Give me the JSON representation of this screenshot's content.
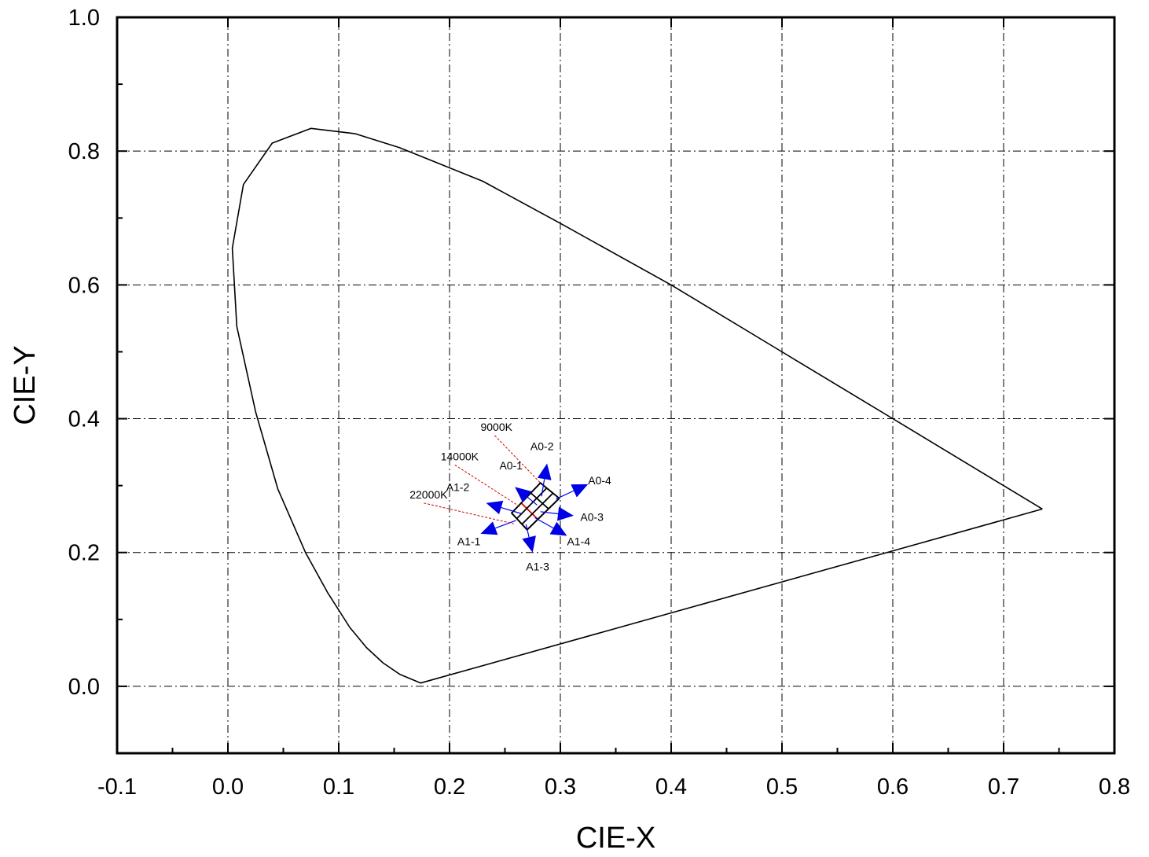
{
  "chart_data": {
    "type": "scatter",
    "title": "",
    "xlabel": "CIE-X",
    "ylabel": "CIE-Y",
    "xlim": [
      -0.1,
      0.8
    ],
    "ylim": [
      -0.1,
      1.0
    ],
    "x_ticks": [
      -0.1,
      0.0,
      0.1,
      0.2,
      0.3,
      0.4,
      0.5,
      0.6,
      0.7,
      0.8
    ],
    "x_tick_labels": [
      "-0.1",
      "0.0",
      "0.1",
      "0.2",
      "0.3",
      "0.4",
      "0.5",
      "0.6",
      "0.7",
      "0.8"
    ],
    "y_ticks": [
      0.0,
      0.2,
      0.4,
      0.6,
      0.8,
      1.0
    ],
    "y_tick_labels": [
      "0.0",
      "0.2",
      "0.4",
      "0.6",
      "0.8",
      "1.0"
    ],
    "grid": true,
    "grid_style": "dash-dot",
    "series": [
      {
        "kind": "line",
        "color": "#000000",
        "points": [
          [
            0.735,
            0.265
          ],
          [
            0.6,
            0.4
          ],
          [
            0.5,
            0.5
          ],
          [
            0.4,
            0.6
          ],
          [
            0.3,
            0.692
          ],
          [
            0.23,
            0.755
          ],
          [
            0.155,
            0.805
          ],
          [
            0.115,
            0.826
          ],
          [
            0.075,
            0.834
          ],
          [
            0.04,
            0.812
          ],
          [
            0.014,
            0.75
          ],
          [
            0.004,
            0.655
          ],
          [
            0.008,
            0.538
          ],
          [
            0.025,
            0.41
          ],
          [
            0.045,
            0.295
          ],
          [
            0.07,
            0.2
          ],
          [
            0.09,
            0.14
          ],
          [
            0.11,
            0.088
          ],
          [
            0.125,
            0.058
          ],
          [
            0.14,
            0.035
          ],
          [
            0.155,
            0.018
          ],
          [
            0.174,
            0.005
          ],
          [
            0.735,
            0.265
          ]
        ]
      }
    ],
    "grid_region": {
      "corners": {
        "top_left": [
          0.256,
          0.259
        ],
        "top_right": [
          0.282,
          0.304
        ],
        "bottom_right": [
          0.299,
          0.281
        ],
        "bottom_left": [
          0.27,
          0.234
        ]
      },
      "divisions": 3,
      "edge_color": "#000000",
      "red_line_color": "#d40000"
    },
    "cct_labels": [
      {
        "text": "9000K",
        "pos": [
          0.228,
          0.382
        ],
        "target": [
          0.282,
          0.304
        ]
      },
      {
        "text": "14000K",
        "pos": [
          0.192,
          0.338
        ],
        "target": [
          0.264,
          0.268
        ]
      },
      {
        "text": "22000K",
        "pos": [
          0.164,
          0.281
        ],
        "target": [
          0.258,
          0.243
        ]
      }
    ],
    "arrows": [
      {
        "label": "A0-1",
        "from": [
          0.279,
          0.271
        ],
        "to": [
          0.259,
          0.298
        ],
        "label_pos": [
          0.245,
          0.324
        ]
      },
      {
        "label": "A0-2",
        "from": [
          0.283,
          0.284
        ],
        "to": [
          0.288,
          0.333
        ],
        "label_pos": [
          0.273,
          0.353
        ]
      },
      {
        "label": "A0-4",
        "from": [
          0.296,
          0.28
        ],
        "to": [
          0.325,
          0.302
        ],
        "label_pos": [
          0.325,
          0.302
        ]
      },
      {
        "label": "A0-3",
        "from": [
          0.282,
          0.261
        ],
        "to": [
          0.312,
          0.255
        ],
        "label_pos": [
          0.318,
          0.247
        ]
      },
      {
        "label": "A1-2",
        "from": [
          0.265,
          0.258
        ],
        "to": [
          0.233,
          0.274
        ],
        "label_pos": [
          0.197,
          0.292
        ]
      },
      {
        "label": "A1-1",
        "from": [
          0.26,
          0.248
        ],
        "to": [
          0.228,
          0.228
        ],
        "label_pos": [
          0.207,
          0.211
        ]
      },
      {
        "label": "A1-4",
        "from": [
          0.277,
          0.252
        ],
        "to": [
          0.306,
          0.225
        ],
        "label_pos": [
          0.306,
          0.211
        ]
      },
      {
        "label": "A1-3",
        "from": [
          0.269,
          0.242
        ],
        "to": [
          0.275,
          0.2
        ],
        "label_pos": [
          0.269,
          0.173
        ]
      }
    ],
    "arrow_color": "#0000e6"
  }
}
